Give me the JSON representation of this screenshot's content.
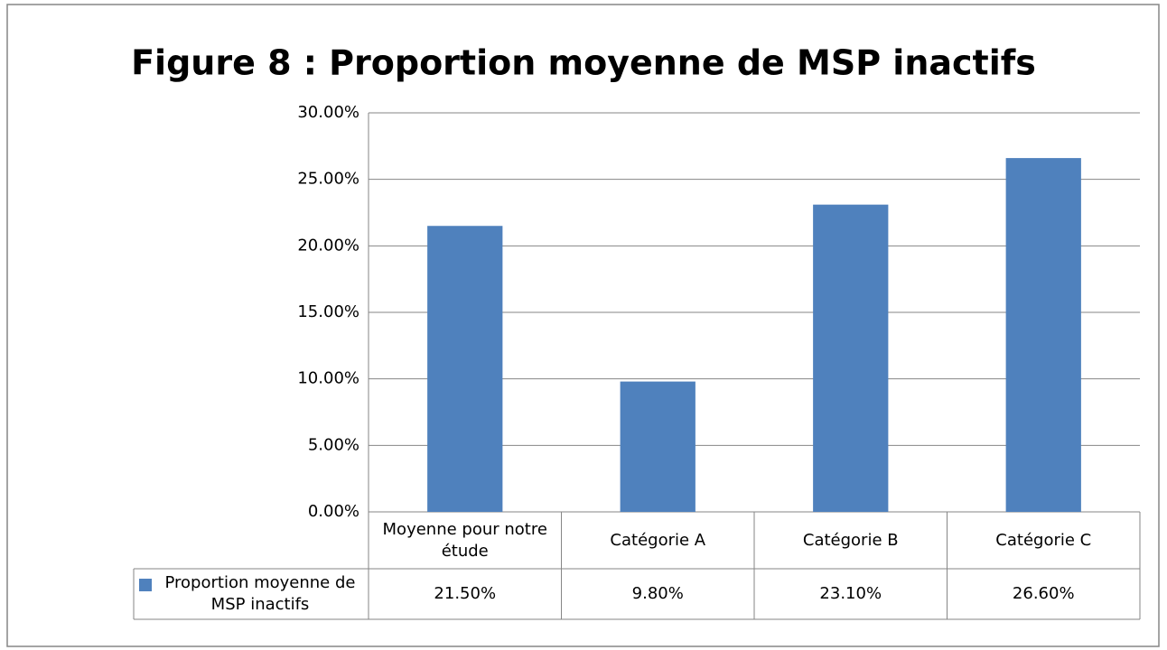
{
  "chart_data": {
    "type": "bar",
    "title": "Figure 8 : Proportion moyenne de MSP inactifs",
    "categories": [
      "Moyenne pour notre étude",
      "Catégorie A",
      "Catégorie B",
      "Catégorie C"
    ],
    "series": [
      {
        "name": "Proportion moyenne de MSP inactifs",
        "color": "#4f81bd",
        "values": [
          21.5,
          9.8,
          23.1,
          26.6
        ],
        "value_labels": [
          "21.50%",
          "9.80%",
          "23.10%",
          "26.60%"
        ]
      }
    ],
    "ylim": [
      0,
      30
    ],
    "yticks": [
      {
        "value": 0,
        "label": "0.00%"
      },
      {
        "value": 5,
        "label": "5.00%"
      },
      {
        "value": 10,
        "label": "10.00%"
      },
      {
        "value": 15,
        "label": "15.00%"
      },
      {
        "value": 20,
        "label": "20.00%"
      },
      {
        "value": 25,
        "label": "25.00%"
      },
      {
        "value": 30,
        "label": "30.00%"
      }
    ],
    "grid": true
  }
}
